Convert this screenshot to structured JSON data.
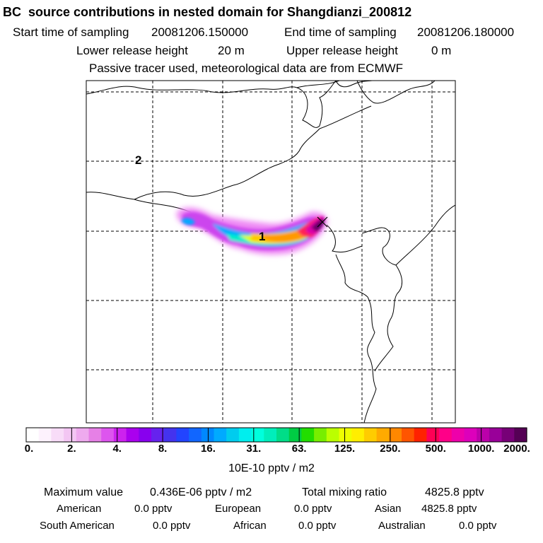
{
  "header": {
    "title": "BC  source contributions in nested domain for Shangdianzi_200812",
    "start_label": "Start time of sampling",
    "start_value": "20081206.150000",
    "end_label": "End time of sampling",
    "end_value": "20081206.180000",
    "lower_label": "Lower release height",
    "lower_value": "20 m",
    "upper_label": "Upper release height",
    "upper_value": "0 m",
    "info": "Passive tracer used, meteorological data are from ECMWF"
  },
  "map": {
    "labels": [
      "1",
      "2"
    ],
    "receptor_marker": "x-marker"
  },
  "colorbar": {
    "ticks": [
      "0.",
      "2.",
      "4.",
      "8.",
      "16.",
      "31.",
      "63.",
      "125.",
      "250.",
      "500.",
      "1000.",
      "2000."
    ],
    "unit": "10E-10 pptv / m2",
    "colors": [
      "#ffffff",
      "#fdf2fd",
      "#f8dcf8",
      "#f3c6f3",
      "#eeaaee",
      "#e680e6",
      "#dd55ee",
      "#cc22ee",
      "#aa00ee",
      "#8800ee",
      "#6622ee",
      "#4433ee",
      "#2244ff",
      "#1166ff",
      "#0088ff",
      "#00aaff",
      "#00ccee",
      "#00eeee",
      "#00ffdd",
      "#00eebb",
      "#00dd88",
      "#00cc44",
      "#22dd00",
      "#77ee00",
      "#bbff00",
      "#eeff00",
      "#ffee00",
      "#ffcc00",
      "#ffaa00",
      "#ff8800",
      "#ff5500",
      "#ff2200",
      "#ff0055",
      "#ff0088",
      "#ee00aa",
      "#dd00bb",
      "#bb00aa",
      "#990099",
      "#770077",
      "#550055"
    ]
  },
  "footer": {
    "max_label": "Maximum value",
    "max_value": "0.436E-06 pptv / m2",
    "total_label": "Total mixing ratio",
    "total_value": "4825.8 pptv",
    "regions": [
      {
        "name": "American",
        "value": "0.0 pptv"
      },
      {
        "name": "European",
        "value": "0.0 pptv"
      },
      {
        "name": "Asian",
        "value": "4825.8 pptv"
      },
      {
        "name": "South American",
        "value": "0.0 pptv"
      },
      {
        "name": "African",
        "value": "0.0 pptv"
      },
      {
        "name": "Australian",
        "value": "0.0 pptv"
      }
    ]
  }
}
